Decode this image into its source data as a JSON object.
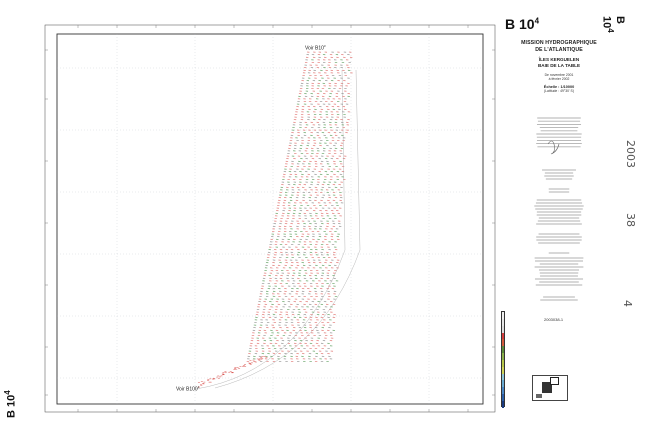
{
  "sheet_title": {
    "main": "B 10",
    "sup": "4"
  },
  "side_title": {
    "main": "B 10",
    "sup": "4"
  },
  "panel": {
    "line1": "MISSION HYDROGRAPHIQUE",
    "line2": "DE L'ATLANTIQUE",
    "place1": "ÎLES KERGUELEN",
    "place2": "BAIE DE LA TABLE",
    "date1": "De novembre 2001",
    "date2": "à février 2002",
    "scale": "Échelle : 1/10000",
    "latitude": "(Latitude : 49°30' S)"
  },
  "stamp": "2003038-1",
  "handwritten": {
    "top": "2003",
    "mid": "38",
    "low": "4"
  },
  "map_labels": {
    "voir_top": "Voir B10",
    "voir_top_sup": "3",
    "voir_bottom": "Voir B100",
    "voir_bottom_sup": "1"
  },
  "colors": {
    "frame": "#333333",
    "grid": "#9aa6b4",
    "sounding_red": "#d9534f",
    "sounding_green": "#3b8a3b",
    "sounding_gray": "#777777"
  },
  "legend_colors": [
    "#f0f0f0",
    "#e6e6e6",
    "#dcdcdc",
    "#d23c3c",
    "#d25a3c",
    "#5c8a3a",
    "#8ab04a",
    "#b6c64a",
    "#cfd35a",
    "#8ec6d6",
    "#6aaad0",
    "#4a86c4",
    "#2c5fa8",
    "#1c3c80"
  ]
}
